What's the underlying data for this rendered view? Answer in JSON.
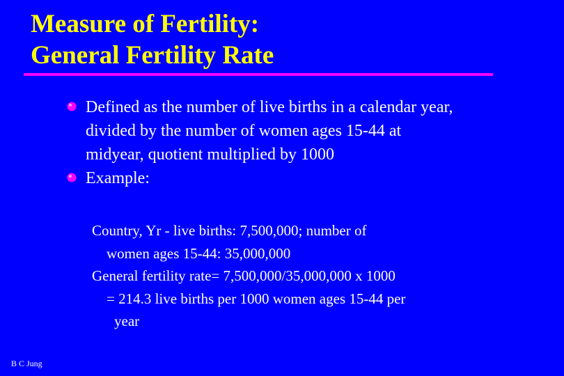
{
  "slide": {
    "title_line1": "Measure of Fertility:",
    "title_line2": "General Fertility Rate",
    "bullets": [
      {
        "icon": "diamond-bullet-icon",
        "text": "Defined as the number of live births in a calendar year, divided by the number of women ages 15-44 at midyear, quotient multiplied by 1000"
      },
      {
        "icon": "diamond-bullet-icon",
        "text": "Example:"
      }
    ],
    "example_lines": [
      "Country, Yr - live births: 7,500,000; number of",
      "women ages 15-44: 35,000,000",
      "General fertility rate= 7,500,000/35,000,000 x 1000",
      "= 214.3 live births per 1000 women ages 15-44 per",
      "year"
    ],
    "footer": "B C Jung"
  },
  "colors": {
    "background": "#0000FF",
    "title": "#FFFF00",
    "rule": "#FF00FF",
    "text": "#FFFFFF",
    "bullet": "#FF00FF"
  }
}
